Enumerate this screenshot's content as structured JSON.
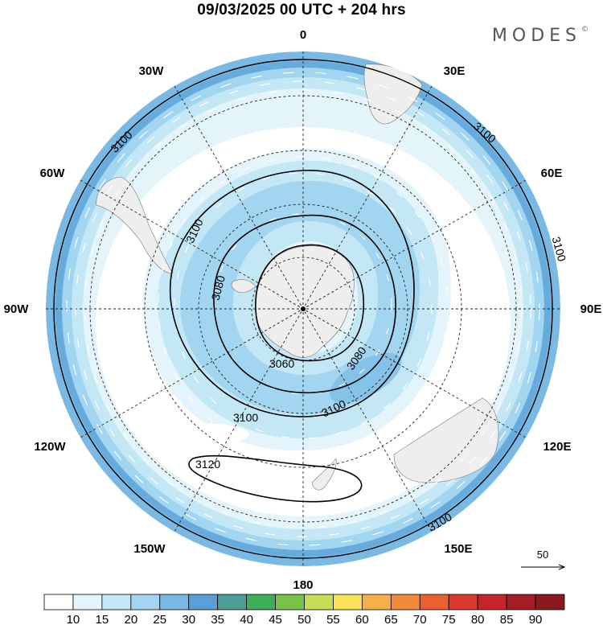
{
  "header": {
    "title": "09/03/2025  00 UTC  + 204 hrs",
    "brand": "MODES",
    "brand_mark": "©"
  },
  "map": {
    "projection": "polar-stereographic-south",
    "longitude_labels": [
      {
        "text": "0",
        "lon": 0
      },
      {
        "text": "30E",
        "lon": 30
      },
      {
        "text": "60E",
        "lon": 60
      },
      {
        "text": "90E",
        "lon": 90
      },
      {
        "text": "120E",
        "lon": 120
      },
      {
        "text": "150E",
        "lon": 150
      },
      {
        "text": "180",
        "lon": 180
      },
      {
        "text": "150W",
        "lon": -150
      },
      {
        "text": "120W",
        "lon": -120
      },
      {
        "text": "90W",
        "lon": -90
      },
      {
        "text": "60W",
        "lon": -60
      },
      {
        "text": "30W",
        "lon": -30
      }
    ],
    "contour_labels": [
      "3060",
      "3080",
      "3080",
      "3100",
      "3100",
      "3100",
      "3100",
      "3100",
      "3100",
      "3100",
      "3120"
    ],
    "contour_color": "#000000",
    "coastline_color": "#777777",
    "land_fill": "#eeeeee"
  },
  "reference_vector": {
    "label": "50"
  },
  "colorbar": {
    "ticks": [
      "10",
      "15",
      "20",
      "25",
      "30",
      "35",
      "40",
      "45",
      "50",
      "55",
      "60",
      "65",
      "70",
      "75",
      "80",
      "85",
      "90"
    ],
    "colors": [
      "#ffffff",
      "#e4f4fb",
      "#c4e7f6",
      "#a2d5f0",
      "#79b9e4",
      "#5a9ed6",
      "#4d9e94",
      "#3eae5c",
      "#78c14a",
      "#c8dc58",
      "#f9e25a",
      "#f6b04a",
      "#f08a3a",
      "#ea6030",
      "#dc3a2c",
      "#c4242a",
      "#a61c24",
      "#8a1a1e"
    ]
  }
}
